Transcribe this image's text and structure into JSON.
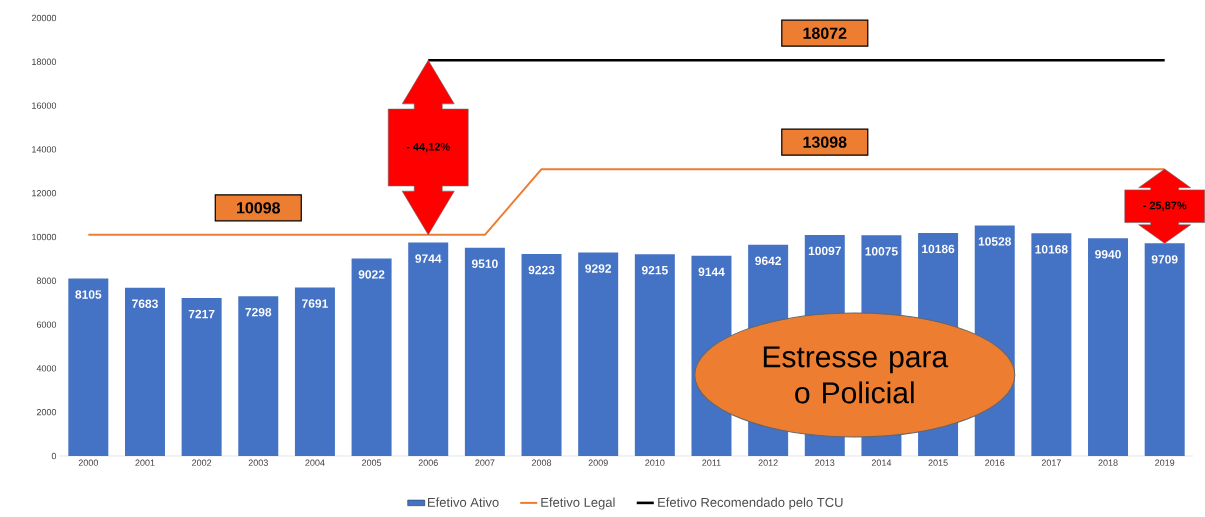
{
  "chart_data": {
    "type": "bar",
    "categories": [
      "2000",
      "2001",
      "2002",
      "2003",
      "2004",
      "2005",
      "2006",
      "2007",
      "2008",
      "2009",
      "2010",
      "2011",
      "2012",
      "2013",
      "2014",
      "2015",
      "2016",
      "2017",
      "2018",
      "2019"
    ],
    "series": [
      {
        "name": "Efetivo Ativo",
        "color": "#4472c4",
        "values": [
          8105,
          7683,
          7217,
          7298,
          7691,
          9022,
          9744,
          9510,
          9223,
          9292,
          9215,
          9144,
          9642,
          10097,
          10075,
          10186,
          10528,
          10168,
          9940,
          9709
        ],
        "value_labels": [
          "8105",
          "7683",
          "7217",
          "7298",
          "7691",
          "9022",
          "9744",
          "9510",
          "9223",
          "9292",
          "9215",
          "9144",
          "9642",
          "10097",
          "10075",
          "10186",
          "10528",
          "10168",
          "9940",
          "9709"
        ]
      },
      {
        "type": "line",
        "name": "Efetivo Legal",
        "color": "#ed7d31",
        "values": [
          10098,
          10098,
          10098,
          10098,
          10098,
          10098,
          10098,
          10098,
          13098,
          13098,
          13098,
          13098,
          13098,
          13098,
          13098,
          13098,
          13098,
          13098,
          13098,
          13098
        ]
      },
      {
        "type": "line",
        "name": "Efetivo Recomendado pelo TCU",
        "color": "#000000",
        "values": [
          null,
          null,
          null,
          null,
          null,
          null,
          18072,
          18072,
          18072,
          18072,
          18072,
          18072,
          18072,
          18072,
          18072,
          18072,
          18072,
          18072,
          18072,
          18072
        ]
      }
    ],
    "ylim": [
      0,
      20000
    ],
    "yticks": [
      0,
      2000,
      4000,
      6000,
      8000,
      10000,
      12000,
      14000,
      16000,
      18000,
      20000
    ],
    "legend": "bottom",
    "annotations": [
      {
        "text": "10098",
        "x": "2003",
        "y": 10098
      },
      {
        "text": "13098",
        "x": "2013",
        "y": 13098
      },
      {
        "text": "18072",
        "x": "2013",
        "y": 18072
      },
      "- 44,12%",
      "- 25,87%",
      "Estresse para o Policial"
    ]
  }
}
